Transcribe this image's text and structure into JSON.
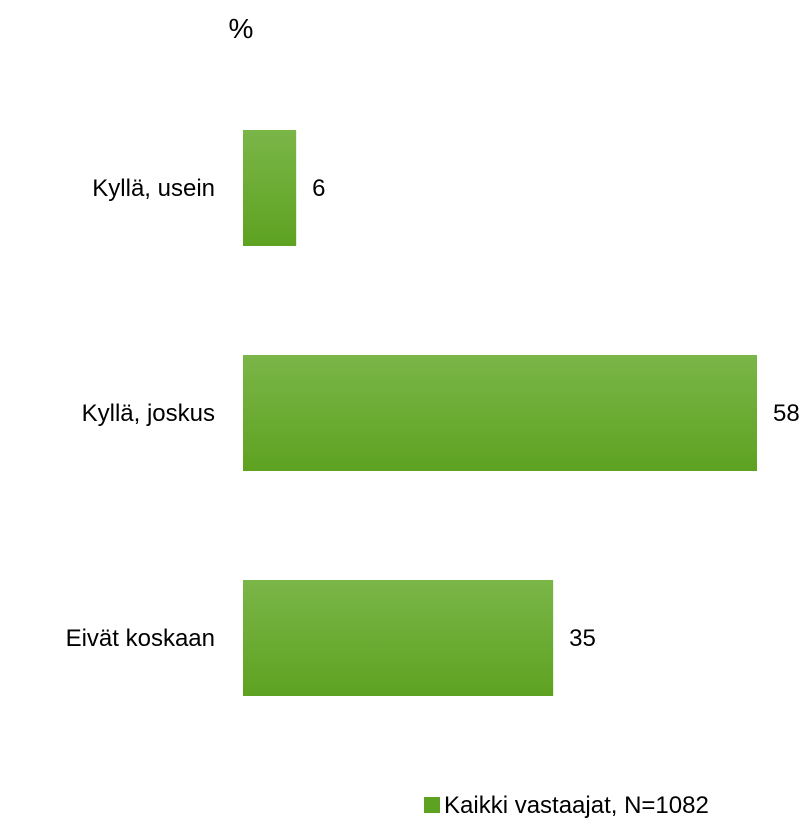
{
  "chart_data": {
    "type": "bar",
    "orientation": "horizontal",
    "unit_label": "%",
    "categories": [
      "Kyllä, usein",
      "Kyllä, joskus",
      "Eivät koskaan"
    ],
    "series": [
      {
        "name": "Kaikki vastaajat, N=1082",
        "values": [
          6,
          58,
          35
        ],
        "color": "#5ea221",
        "color_light": "#7ab648"
      }
    ],
    "xlim": [
      0,
      58
    ],
    "grid": false,
    "legend_position": "bottom-right"
  }
}
